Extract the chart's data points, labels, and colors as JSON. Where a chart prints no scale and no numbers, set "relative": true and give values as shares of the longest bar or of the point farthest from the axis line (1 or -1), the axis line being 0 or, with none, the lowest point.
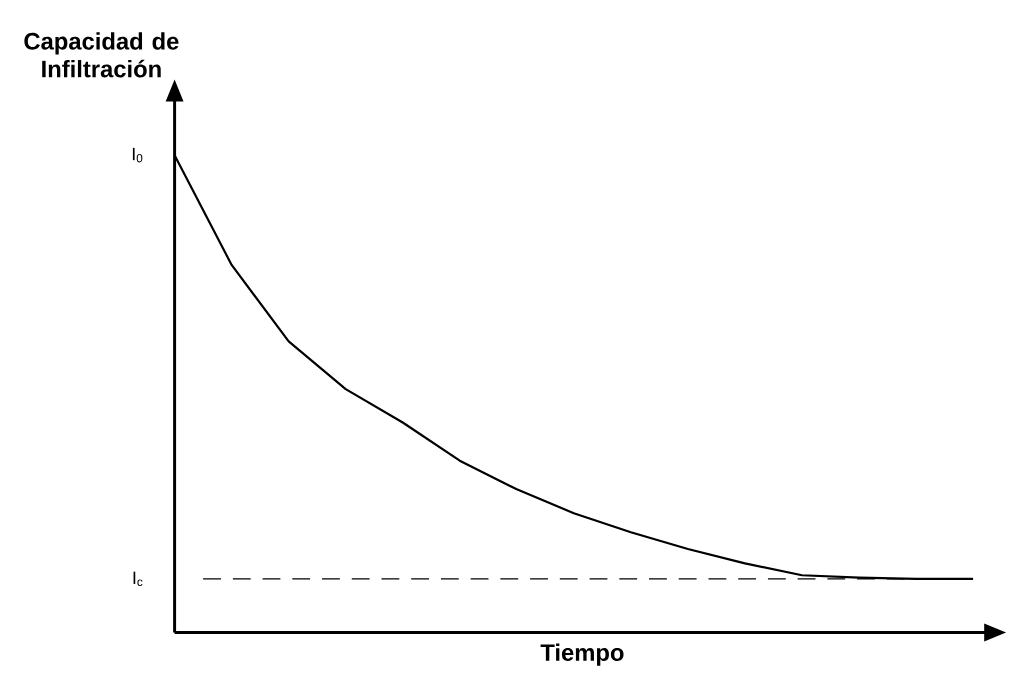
{
  "chart_data": {
    "type": "line",
    "relative": true,
    "ylabel": "Capacidad de Infiltración",
    "xlabel": "Tiempo",
    "categories": [
      null,
      null,
      null,
      null,
      null,
      null,
      null,
      null,
      null,
      null,
      null,
      null,
      null,
      null,
      null
    ],
    "values": [
      1,
      0.77,
      0.61,
      0.51,
      0.44,
      0.36,
      0.3,
      0.25,
      0.21,
      0.175,
      0.145,
      0.12,
      0.115,
      0.1125,
      0.1125
    ],
    "color": "#000000",
    "line_style": "solid",
    "marker": "none",
    "annotations": [
      "I$_{0}$"
    ],
    "ref_lines": [
      {
        "axis": "y",
        "value": 0.1125,
        "label": "I$_{c}$",
        "color": "#000000",
        "line_style": "dashed"
      }
    ]
  }
}
